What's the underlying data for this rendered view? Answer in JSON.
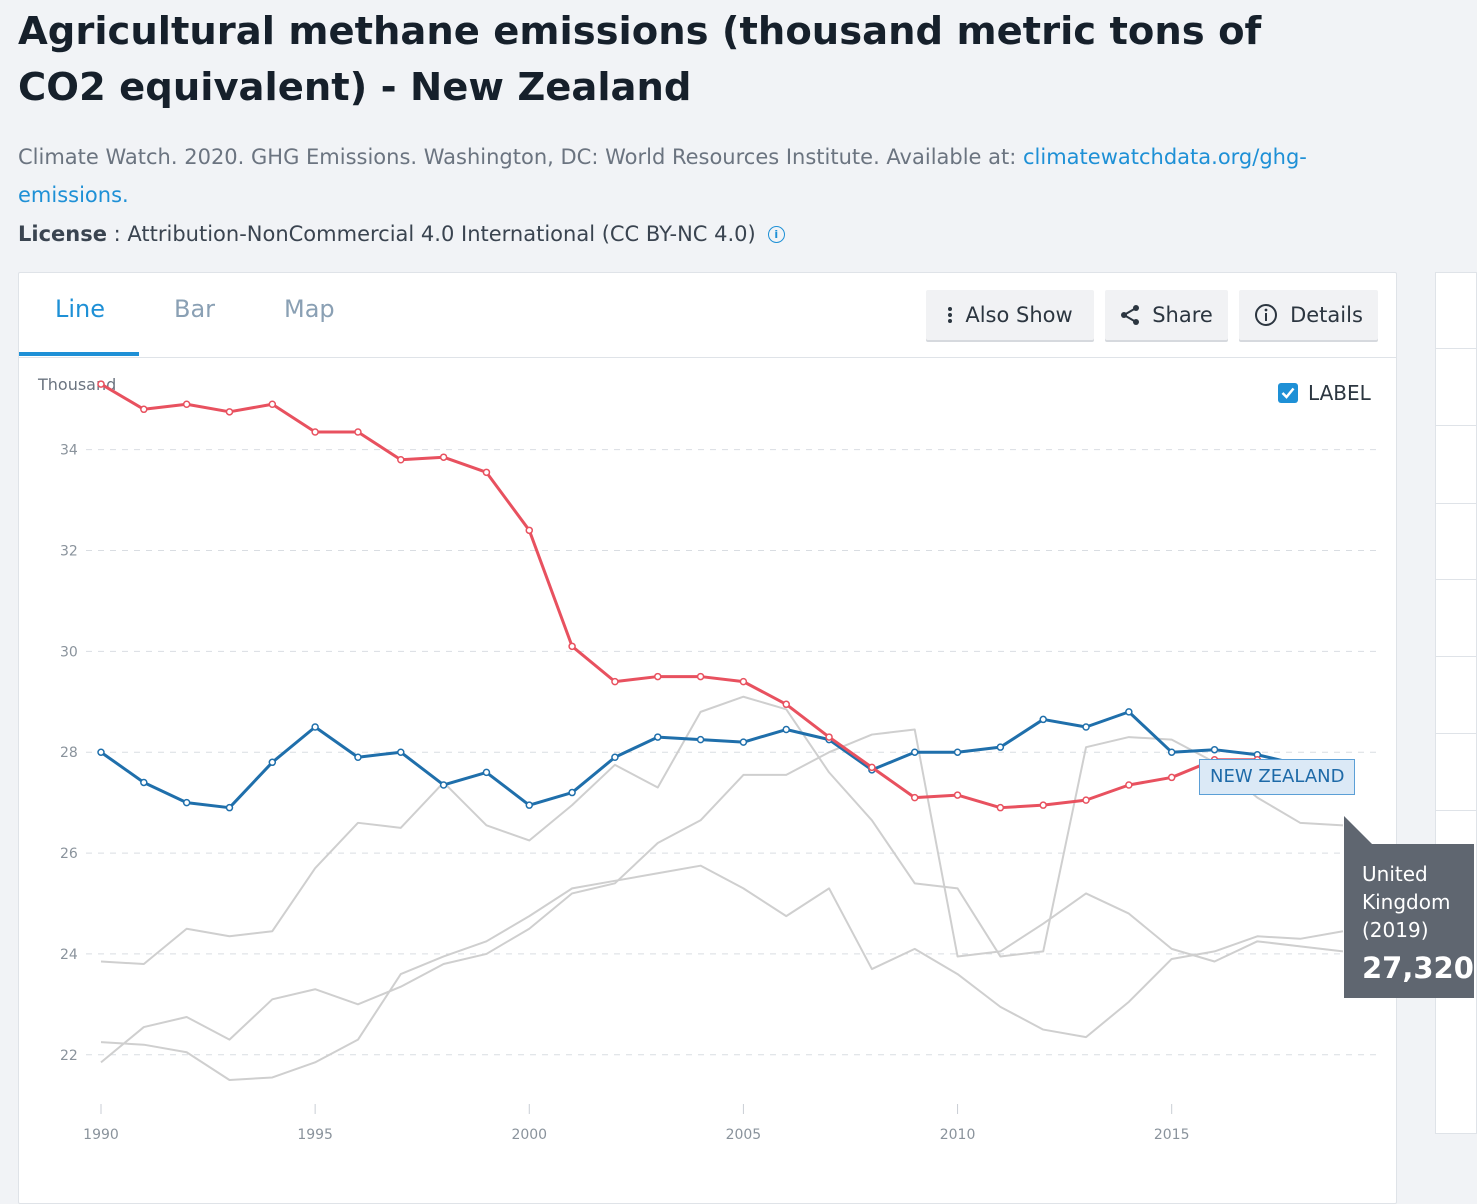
{
  "page": {
    "title": "Agricultural methane emissions (thousand metric tons of CO2 equivalent) - New Zealand",
    "source_text": "Climate Watch. 2020. GHG Emissions. Washington, DC: World Resources Institute. Available at: ",
    "source_link": "climatewatchdata.org/ghg-emissions.",
    "license_label": "License",
    "license_sep": " : ",
    "license_value": "Attribution-NonCommercial 4.0 International (CC BY-NC 4.0)"
  },
  "tabs": [
    "Line",
    "Bar",
    "Map"
  ],
  "active_tab": "Line",
  "toolbar": {
    "also_show": "Also Show",
    "share": "Share",
    "details": "Details"
  },
  "label_toggle": {
    "label": "LABEL",
    "checked": true
  },
  "colors": {
    "new_zealand": "#1f6fab",
    "united_kingdom": "#e8515f",
    "other": "#cfcfcf",
    "accent": "#1e90d6"
  },
  "series_label": "NEW ZEALAND",
  "tooltip": {
    "name": "United Kingdom",
    "year": "(2019)",
    "value": "27,320"
  },
  "chart_data": {
    "type": "line",
    "title": "Agricultural methane emissions (thousand metric tons of CO2 equivalent) - New Zealand",
    "ylabel": "Thousand",
    "xlabel": "",
    "ylim": [
      21.5,
      35.5
    ],
    "xlim": [
      1990,
      2019
    ],
    "yticks": [
      22,
      24,
      26,
      28,
      30,
      32,
      34
    ],
    "xticks": [
      1990,
      1995,
      2000,
      2005,
      2010,
      2015
    ],
    "grid": true,
    "x": [
      1990,
      1991,
      1992,
      1993,
      1994,
      1995,
      1996,
      1997,
      1998,
      1999,
      2000,
      2001,
      2002,
      2003,
      2004,
      2005,
      2006,
      2007,
      2008,
      2009,
      2010,
      2011,
      2012,
      2013,
      2014,
      2015,
      2016,
      2017,
      2018,
      2019
    ],
    "series": [
      {
        "name": "New Zealand",
        "color_key": "new_zealand",
        "highlight": true,
        "values": [
          28.0,
          27.4,
          27.0,
          26.9,
          27.8,
          28.5,
          27.9,
          28.0,
          27.35,
          27.6,
          26.95,
          27.2,
          27.9,
          28.3,
          28.25,
          28.2,
          28.45,
          28.25,
          27.65,
          28.0,
          28.0,
          28.1,
          28.65,
          28.5,
          28.8,
          28.0,
          28.05,
          27.95,
          27.75,
          27.5
        ]
      },
      {
        "name": "United Kingdom",
        "color_key": "united_kingdom",
        "highlight": true,
        "values": [
          35.3,
          34.8,
          34.9,
          34.75,
          34.9,
          34.35,
          34.35,
          33.8,
          33.85,
          33.55,
          32.4,
          30.1,
          29.4,
          29.5,
          29.5,
          29.4,
          28.95,
          28.3,
          27.7,
          27.1,
          27.15,
          26.9,
          26.95,
          27.05,
          27.35,
          27.5,
          27.85,
          27.85,
          27.6,
          27.32
        ]
      },
      {
        "name": "",
        "color_key": "other",
        "values": [
          23.85,
          23.8,
          24.5,
          24.35,
          24.45,
          25.7,
          26.6,
          26.5,
          27.4,
          26.55,
          26.25,
          26.95,
          27.75,
          27.3,
          28.8,
          29.1,
          28.85,
          27.6,
          26.65,
          25.4,
          25.3,
          23.95,
          24.05,
          28.1,
          28.3,
          28.25,
          27.8,
          27.1,
          26.6,
          26.55
        ]
      },
      {
        "name": "",
        "color_key": "other",
        "values": [
          22.25,
          22.2,
          22.05,
          21.5,
          21.55,
          21.85,
          22.3,
          23.6,
          23.95,
          24.25,
          24.75,
          25.3,
          25.45,
          25.6,
          25.75,
          25.3,
          24.75,
          25.3,
          23.7,
          24.1,
          23.6,
          22.95,
          22.5,
          22.35,
          23.05,
          23.9,
          24.05,
          24.35,
          24.3,
          24.45
        ]
      },
      {
        "name": "",
        "color_key": "other",
        "values": [
          21.85,
          22.55,
          22.75,
          22.3,
          23.1,
          23.3,
          23.0,
          23.35,
          23.8,
          24.0,
          24.5,
          25.2,
          25.4,
          26.2,
          26.65,
          27.55,
          27.55,
          28.0,
          28.35,
          28.45,
          23.95,
          24.05,
          24.6,
          25.2,
          24.8,
          24.1,
          23.85,
          24.25,
          24.15,
          24.05
        ]
      }
    ]
  }
}
